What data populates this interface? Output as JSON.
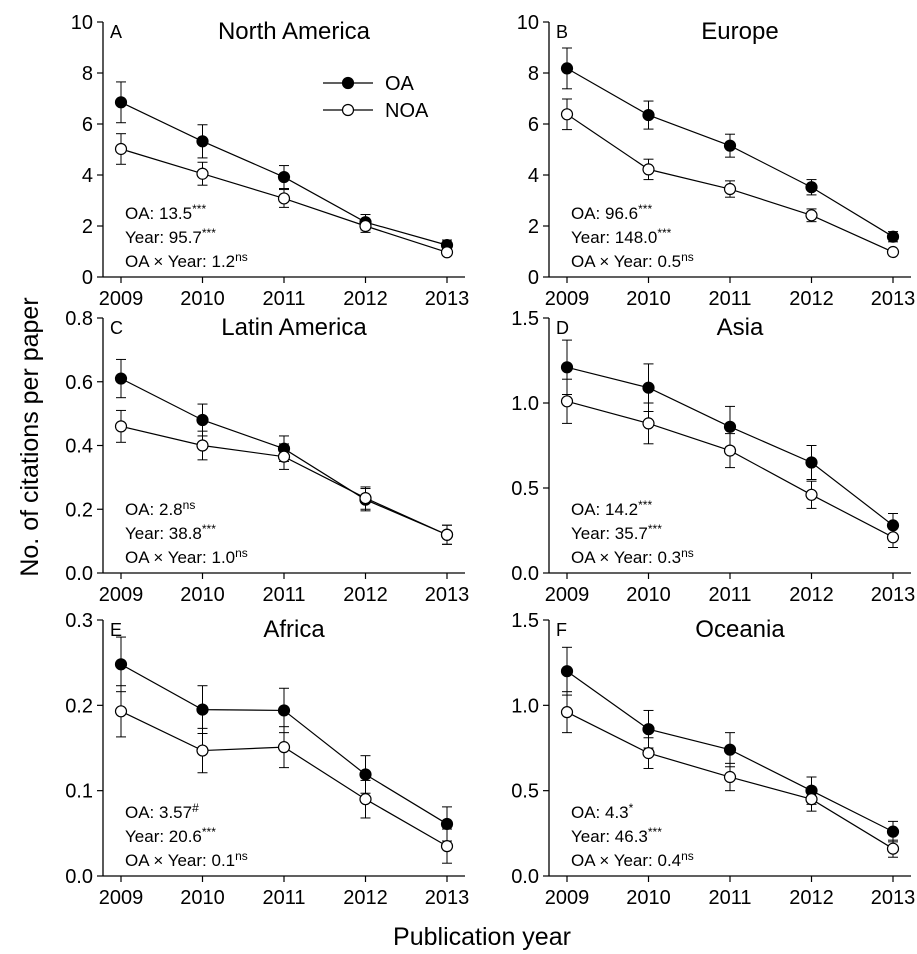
{
  "figure": {
    "ylabel": "No. of citations per paper",
    "xlabel": "Publication year",
    "series_names": [
      "OA",
      "NOA"
    ]
  },
  "chart_data": [
    {
      "type": "line",
      "panel": "A",
      "title": "North America",
      "x": [
        2009,
        2010,
        2011,
        2012,
        2013
      ],
      "ylim": [
        0,
        10
      ],
      "yticks": [
        0,
        2,
        4,
        6,
        8,
        10
      ],
      "ydecimals": 0,
      "legend": "top-center",
      "series": [
        {
          "name": "OA",
          "marker": "filled",
          "values": [
            6.85,
            5.32,
            3.92,
            2.15,
            1.25
          ],
          "err": [
            0.8,
            0.65,
            0.45,
            0.3,
            0.2
          ]
        },
        {
          "name": "NOA",
          "marker": "open",
          "values": [
            5.02,
            4.05,
            3.08,
            2.0,
            0.97
          ],
          "err": [
            0.6,
            0.45,
            0.35,
            0.25,
            0.12
          ]
        }
      ],
      "stats": [
        {
          "label": "OA: 13.5",
          "sup": "***"
        },
        {
          "label": "Year:  95.7",
          "sup": "***"
        },
        {
          "label": "OA × Year: 1.2",
          "sup": "ns"
        }
      ]
    },
    {
      "type": "line",
      "panel": "B",
      "title": "Europe",
      "x": [
        2009,
        2010,
        2011,
        2012,
        2013
      ],
      "ylim": [
        0,
        10
      ],
      "yticks": [
        0,
        2,
        4,
        6,
        8,
        10
      ],
      "ydecimals": 0,
      "series": [
        {
          "name": "OA",
          "marker": "filled",
          "values": [
            8.18,
            6.35,
            5.15,
            3.52,
            1.58
          ],
          "err": [
            0.8,
            0.55,
            0.45,
            0.3,
            0.2
          ]
        },
        {
          "name": "NOA",
          "marker": "open",
          "values": [
            6.38,
            4.22,
            3.45,
            2.42,
            0.98
          ],
          "err": [
            0.6,
            0.4,
            0.32,
            0.25,
            0.1
          ]
        }
      ],
      "stats": [
        {
          "label": "OA: 96.6",
          "sup": "***"
        },
        {
          "label": "Year:  148.0",
          "sup": "***"
        },
        {
          "label": "OA × Year: 0.5",
          "sup": "ns"
        }
      ]
    },
    {
      "type": "line",
      "panel": "C",
      "title": "Latin America",
      "x": [
        2009,
        2010,
        2011,
        2012,
        2013
      ],
      "ylim": [
        0,
        0.8
      ],
      "yticks": [
        0.0,
        0.2,
        0.4,
        0.6,
        0.8
      ],
      "ydecimals": 1,
      "series": [
        {
          "name": "OA",
          "marker": "filled",
          "values": [
            0.61,
            0.48,
            0.39,
            0.23,
            0.12
          ],
          "err": [
            0.06,
            0.05,
            0.04,
            0.035,
            0.03
          ]
        },
        {
          "name": "NOA",
          "marker": "open",
          "values": [
            0.46,
            0.4,
            0.365,
            0.235,
            0.12
          ],
          "err": [
            0.05,
            0.045,
            0.04,
            0.035,
            0.03
          ]
        }
      ],
      "stats": [
        {
          "label": "OA: 2.8",
          "sup": "ns"
        },
        {
          "label": "Year:  38.8",
          "sup": "***"
        },
        {
          "label": "OA × Year: 1.0",
          "sup": "ns"
        }
      ]
    },
    {
      "type": "line",
      "panel": "D",
      "title": "Asia",
      "x": [
        2009,
        2010,
        2011,
        2012,
        2013
      ],
      "ylim": [
        0,
        1.5
      ],
      "yticks": [
        0.0,
        0.5,
        1.0,
        1.5
      ],
      "ydecimals": 1,
      "series": [
        {
          "name": "OA",
          "marker": "filled",
          "values": [
            1.21,
            1.09,
            0.86,
            0.65,
            0.28
          ],
          "err": [
            0.16,
            0.14,
            0.12,
            0.1,
            0.07
          ]
        },
        {
          "name": "NOA",
          "marker": "open",
          "values": [
            1.01,
            0.88,
            0.72,
            0.46,
            0.21
          ],
          "err": [
            0.13,
            0.12,
            0.1,
            0.08,
            0.06
          ]
        }
      ],
      "stats": [
        {
          "label": "OA: 14.2",
          "sup": "***"
        },
        {
          "label": "Year:  35.7",
          "sup": "***"
        },
        {
          "label": "OA × Year: 0.3",
          "sup": "ns"
        }
      ]
    },
    {
      "type": "line",
      "panel": "E",
      "title": "Africa",
      "x": [
        2009,
        2010,
        2011,
        2012,
        2013
      ],
      "ylim": [
        0,
        0.3
      ],
      "yticks": [
        0.0,
        0.1,
        0.2,
        0.3
      ],
      "ydecimals": 1,
      "series": [
        {
          "name": "OA",
          "marker": "filled",
          "values": [
            0.248,
            0.195,
            0.194,
            0.119,
            0.061
          ],
          "err": [
            0.032,
            0.028,
            0.026,
            0.022,
            0.02
          ]
        },
        {
          "name": "NOA",
          "marker": "open",
          "values": [
            0.193,
            0.147,
            0.151,
            0.09,
            0.035
          ],
          "err": [
            0.03,
            0.026,
            0.024,
            0.022,
            0.02
          ]
        }
      ],
      "stats": [
        {
          "label": "OA: 3.57",
          "sup": "#"
        },
        {
          "label": "Year:  20.6",
          "sup": "***"
        },
        {
          "label": "OA × Year: 0.1",
          "sup": "ns"
        }
      ]
    },
    {
      "type": "line",
      "panel": "F",
      "title": "Oceania",
      "x": [
        2009,
        2010,
        2011,
        2012,
        2013
      ],
      "ylim": [
        0,
        1.5
      ],
      "yticks": [
        0.0,
        0.5,
        1.0,
        1.5
      ],
      "ydecimals": 1,
      "series": [
        {
          "name": "OA",
          "marker": "filled",
          "values": [
            1.2,
            0.86,
            0.74,
            0.5,
            0.26
          ],
          "err": [
            0.14,
            0.11,
            0.1,
            0.08,
            0.06
          ]
        },
        {
          "name": "NOA",
          "marker": "open",
          "values": [
            0.96,
            0.72,
            0.58,
            0.45,
            0.16
          ],
          "err": [
            0.12,
            0.09,
            0.08,
            0.07,
            0.05
          ]
        }
      ],
      "stats": [
        {
          "label": "OA: 4.3",
          "sup": "*"
        },
        {
          "label": "Year:  46.3",
          "sup": "***"
        },
        {
          "label": "OA × Year: 0.4",
          "sup": "ns"
        }
      ]
    }
  ]
}
